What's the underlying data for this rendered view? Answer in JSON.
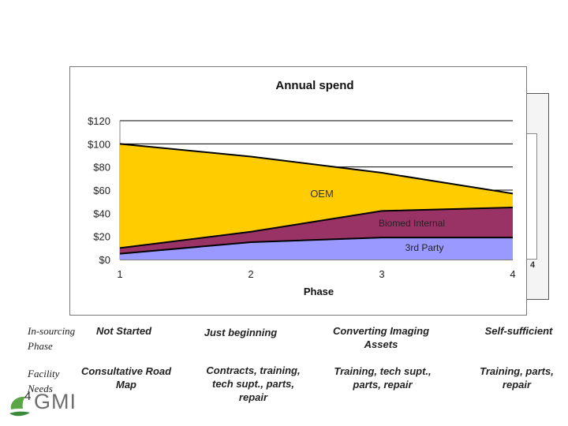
{
  "chart_data": {
    "type": "area",
    "stacked": true,
    "title": "Annual spend",
    "xlabel": "Phase",
    "ylabel": "",
    "x": [
      1,
      2,
      3,
      4
    ],
    "ylim": [
      0,
      120
    ],
    "yticks": [
      0,
      20,
      40,
      60,
      80,
      100,
      120
    ],
    "ytick_labels": [
      "$0",
      "$20",
      "$40",
      "$60",
      "$80",
      "$100",
      "$120"
    ],
    "series": [
      {
        "name": "3rd Party",
        "values": [
          5,
          15,
          19,
          19
        ],
        "color": "#9999ff"
      },
      {
        "name": "Biomed Internal",
        "values": [
          5,
          9,
          23,
          26
        ],
        "color": "#993366"
      },
      {
        "name": "OEM",
        "values": [
          90,
          65,
          33,
          12
        ],
        "color": "#ffcc00"
      }
    ],
    "series_labels": {
      "oem": "OEM",
      "biomed": "Biomed Internal",
      "third": "3rd Party"
    },
    "background_tick": "4"
  },
  "table": {
    "row_headers": {
      "insourcing": "In-sourcing Phase",
      "facility": "Facility Needs"
    },
    "insourcing": [
      "Not Started",
      "Just beginning",
      "Converting Imaging Assets",
      "Self-sufficient"
    ],
    "needs": [
      "Consultative Road Map",
      "Contracts, training, tech supt., parts, repair",
      "Training, tech supt., parts, repair",
      "Training, parts, repair"
    ]
  },
  "footer": {
    "page_number": "4",
    "logo_text": "GMI"
  }
}
